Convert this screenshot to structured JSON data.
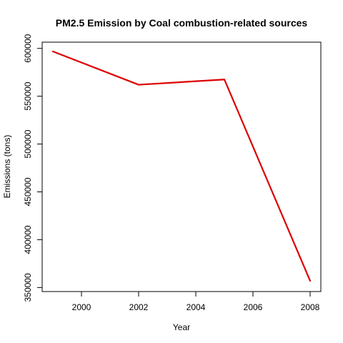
{
  "chart_data": {
    "type": "line",
    "title": "PM2.5 Emission by Coal combustion-related sources",
    "xlabel": "Year",
    "ylabel": "Emissions (tons)",
    "x": [
      1999,
      2002,
      2005,
      2008
    ],
    "series": [
      {
        "values": [
          596800,
          562000,
          567500,
          357000
        ],
        "color": "#dd0000"
      }
    ],
    "xlim": [
      1999,
      2008
    ],
    "ylim": [
      357000,
      596800
    ],
    "xticks": [
      2000,
      2002,
      2004,
      2006,
      2008
    ],
    "yticks": [
      350000,
      400000,
      450000,
      500000,
      550000,
      600000
    ],
    "xtick_labels": [
      "2000",
      "2002",
      "2004",
      "2006",
      "2008"
    ],
    "ytick_labels": [
      "350000",
      "400000",
      "450000",
      "500000",
      "550000",
      "600000"
    ],
    "grid": false,
    "legend": "none"
  }
}
